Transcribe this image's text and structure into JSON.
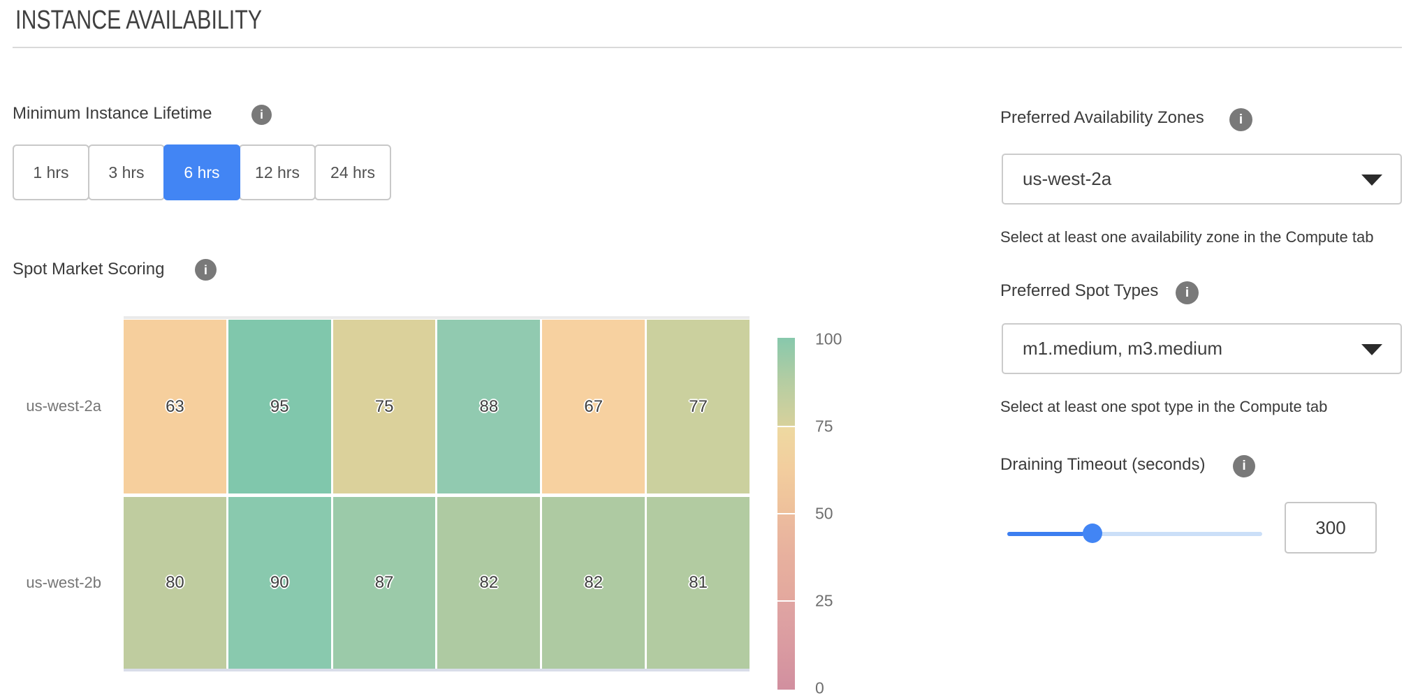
{
  "page": {
    "title": "INSTANCE AVAILABILITY"
  },
  "lifetime": {
    "label": "Minimum Instance Lifetime",
    "options": [
      {
        "label": "1 hrs",
        "selected": false
      },
      {
        "label": "3 hrs",
        "selected": false
      },
      {
        "label": "6 hrs",
        "selected": true
      },
      {
        "label": "12 hrs",
        "selected": false
      },
      {
        "label": "24 hrs",
        "selected": false
      }
    ]
  },
  "scoring": {
    "label": "Spot Market Scoring",
    "chart_data": {
      "type": "heatmap",
      "rows": [
        "us-west-2a",
        "us-west-2b"
      ],
      "values": [
        [
          63,
          95,
          75,
          88,
          67,
          77
        ],
        [
          80,
          90,
          87,
          82,
          82,
          81
        ]
      ],
      "cell_colors": [
        [
          "#f6cf9d",
          "#80c7ac",
          "#dbd19b",
          "#91cab0",
          "#f7d1a0",
          "#cbd09e"
        ],
        [
          "#bfcc9f",
          "#89c9ae",
          "#9bcaa9",
          "#aecaa2",
          "#aecaa2",
          "#b2cba1"
        ]
      ],
      "value_range": [
        0,
        100
      ],
      "colorbar": {
        "ticks": [
          "100",
          "75",
          "50",
          "25",
          "0"
        ],
        "segments": [
          {
            "from": "#87c8ac",
            "mid": "#b5cda2",
            "to": "#d7d19c"
          },
          {
            "from": "#eed9a1",
            "mid": "#f2cd9e",
            "to": "#eec09b"
          },
          {
            "from": "#ecbc9e",
            "mid": "#e7b09e",
            "to": "#e3a89e"
          },
          {
            "from": "#e0a5a2",
            "mid": "#da9ba1",
            "to": "#d18f9f"
          }
        ]
      }
    }
  },
  "zones": {
    "label": "Preferred Availability Zones",
    "value": "us-west-2a",
    "helper": "Select at least one availability zone in the Compute tab"
  },
  "spot_types": {
    "label": "Preferred Spot Types",
    "value": "m1.medium, m3.medium",
    "helper": "Select at least one spot type in the Compute tab"
  },
  "draining": {
    "label": "Draining Timeout (seconds)",
    "value": "300"
  },
  "colors": {
    "accent_blue": "#4285f4",
    "slider_track": "#cbdff8",
    "info_icon": "#797979"
  }
}
